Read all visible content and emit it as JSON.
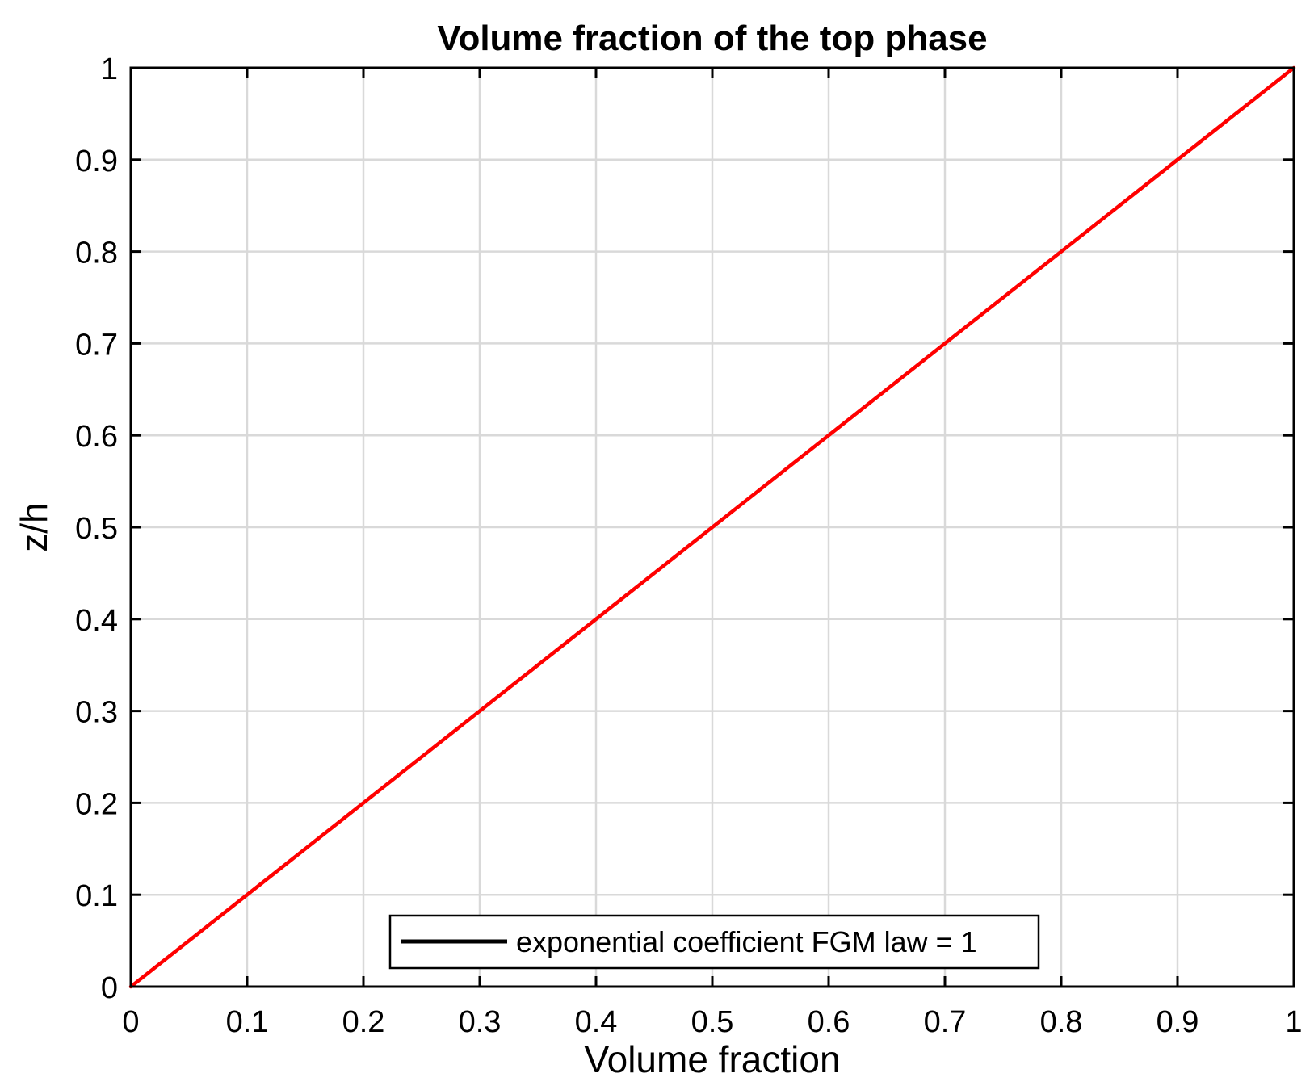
{
  "chart_data": {
    "type": "line",
    "title": "Volume fraction of the top phase",
    "xlabel": "Volume fraction",
    "ylabel": "z/h",
    "xlim": [
      0,
      1
    ],
    "ylim": [
      0,
      1
    ],
    "xticks": [
      "0",
      "0.1",
      "0.2",
      "0.3",
      "0.4",
      "0.5",
      "0.6",
      "0.7",
      "0.8",
      "0.9",
      "1"
    ],
    "yticks": [
      "0",
      "0.1",
      "0.2",
      "0.3",
      "0.4",
      "0.5",
      "0.6",
      "0.7",
      "0.8",
      "0.9",
      "1"
    ],
    "grid": true,
    "legend": {
      "placement": "bottom-center",
      "entries": [
        {
          "label": "exponential coefficient FGM law = 1",
          "color": "#000000"
        }
      ]
    },
    "series": [
      {
        "color": "#ff0000",
        "x": [
          0,
          0.1,
          0.2,
          0.3,
          0.4,
          0.5,
          0.6,
          0.7,
          0.8,
          0.9,
          1
        ],
        "y": [
          0,
          0.1,
          0.2,
          0.3,
          0.4,
          0.5,
          0.6,
          0.7,
          0.8,
          0.9,
          1
        ]
      }
    ]
  }
}
